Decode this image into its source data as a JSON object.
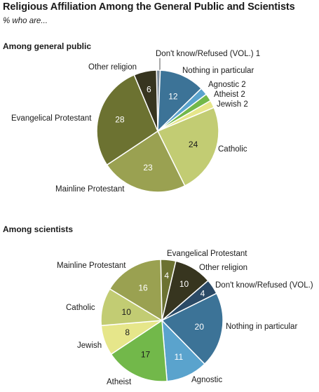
{
  "title": "Religious Affiliation Among the General Public and Scientists",
  "subtitle": "% who are...",
  "chart_data": [
    {
      "type": "pie",
      "title": "Among general public",
      "slices": [
        {
          "label": "Don't know/Refused (VOL.)",
          "value": 1,
          "color": "#7d8c9a",
          "value_in_label": true
        },
        {
          "label": "Nothing in particular",
          "value": 12,
          "color": "#3c7397",
          "value_in_label": false
        },
        {
          "label": "Agnostic",
          "value": 2,
          "color": "#5aa3cd",
          "value_in_label": true
        },
        {
          "label": "Atheist",
          "value": 2,
          "color": "#72b84a",
          "value_in_label": true
        },
        {
          "label": "Jewish",
          "value": 2,
          "color": "#e6e68a",
          "value_in_label": true
        },
        {
          "label": "Catholic",
          "value": 24,
          "color": "#c2cc73",
          "value_in_label": false
        },
        {
          "label": "Mainline Protestant",
          "value": 23,
          "color": "#9aa151",
          "value_in_label": false
        },
        {
          "label": "Evangelical Protestant",
          "value": 28,
          "color": "#6c7231",
          "value_in_label": false
        },
        {
          "label": "Other religion",
          "value": 6,
          "color": "#37351f",
          "value_in_label": false
        }
      ]
    },
    {
      "type": "pie",
      "title": "Among scientists",
      "slices": [
        {
          "label": "Evangelical Protestant",
          "value": 4,
          "color": "#6c7231",
          "value_in_label": false
        },
        {
          "label": "Other religion",
          "value": 10,
          "color": "#37351f",
          "value_in_label": false
        },
        {
          "label": "Don't know/Refused (VOL.)",
          "value": 4,
          "color": "#2b4a66",
          "value_in_label": false
        },
        {
          "label": "Nothing in particular",
          "value": 20,
          "color": "#3c7397",
          "value_in_label": false
        },
        {
          "label": "Agnostic",
          "value": 11,
          "color": "#5aa3cd",
          "value_in_label": false
        },
        {
          "label": "Atheist",
          "value": 17,
          "color": "#72b84a",
          "value_in_label": false
        },
        {
          "label": "Jewish",
          "value": 8,
          "color": "#e6e68a",
          "value_in_label": false
        },
        {
          "label": "Catholic",
          "value": 10,
          "color": "#c2cc73",
          "value_in_label": false
        },
        {
          "label": "Mainline Protestant",
          "value": 16,
          "color": "#9aa151",
          "value_in_label": false
        }
      ]
    }
  ]
}
